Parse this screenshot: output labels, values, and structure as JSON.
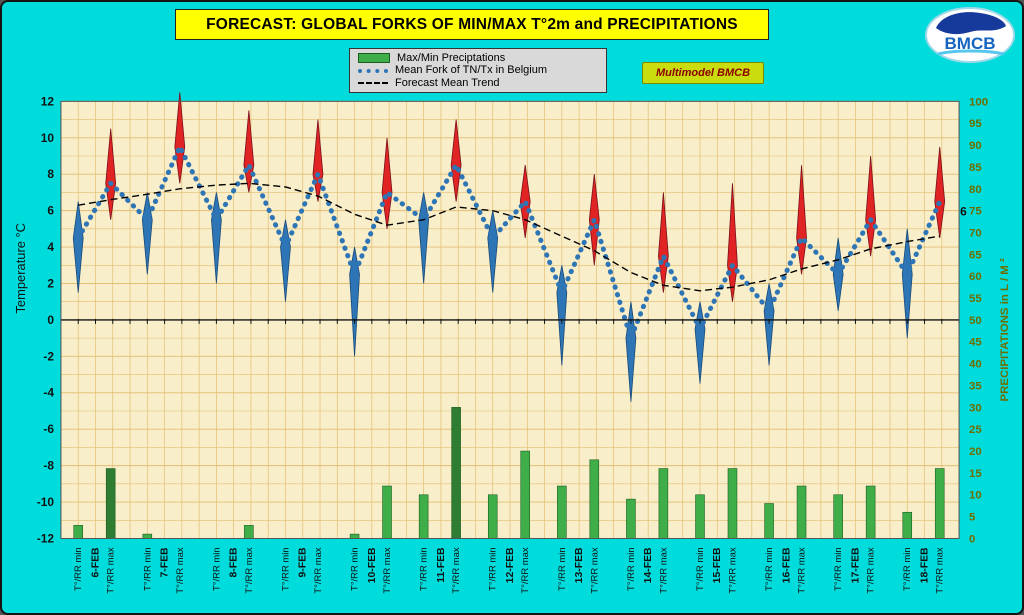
{
  "title": "FORECAST: GLOBAL FORKS OF  MIN/MAX T°2m and PRECIPITATIONS",
  "badge": "Multimodel BMCB",
  "logo": {
    "text": "BMCB"
  },
  "legend": [
    {
      "label": "Max/Min Preciptations"
    },
    {
      "label": "Mean Fork of TN/Tx in Belgium"
    },
    {
      "label": "Forecast Mean Trend"
    }
  ],
  "colors": {
    "background": "#00dcdc",
    "banner_bg": "#ffff00",
    "plot_bg": "#f8eec9",
    "grid": "#e3bd72",
    "bar": "#3fae49",
    "bar_dark": "#2e7d32",
    "fork": "#2e75b6",
    "spike_max": "#e02424",
    "spike_min": "#2e75b6",
    "trend": "#000000",
    "badge_bg": "#c9dc0e",
    "badge_text": "#8b0000",
    "right_axis": "#6e6e00"
  },
  "chart_data": {
    "type": "line",
    "title": "FORECAST: GLOBAL FORKS OF  MIN/MAX T°2m and PRECIPITATIONS",
    "temp_axis": {
      "label": "Temperature  °C",
      "min": -12,
      "max": 12,
      "step": 2
    },
    "precip_axis": {
      "label": "PRECIPITATIONS in L / M ²",
      "min": 0,
      "max": 100,
      "step": 5
    },
    "x_min_label": "T°/RR min",
    "x_max_label": "T°/RR max",
    "end_annotation": "6",
    "series": [
      "Max/Min Preciptations",
      "Mean Fork of TN/Tx in Belgium",
      "Forecast Mean Trend"
    ],
    "legend_position": "top",
    "grid": true,
    "days": [
      {
        "date": "6-FEB",
        "min": {
          "mean": 4.5,
          "spike_hi": 6.5,
          "spike_lo": 1.5,
          "trend": 6.3,
          "precip": 3
        },
        "max": {
          "mean": 7.5,
          "spike_hi": 10.5,
          "spike_lo": 5.5,
          "trend": 6.6,
          "precip": 16,
          "dark": true
        }
      },
      {
        "date": "7-FEB",
        "min": {
          "mean": 5.5,
          "spike_hi": 7.0,
          "spike_lo": 2.5,
          "trend": 6.9,
          "precip": 1
        },
        "max": {
          "mean": 9.5,
          "spike_hi": 12.5,
          "spike_lo": 7.5,
          "trend": 7.2,
          "precip": 0
        }
      },
      {
        "date": "8-FEB",
        "min": {
          "mean": 5.5,
          "spike_hi": 7.0,
          "spike_lo": 2.0,
          "trend": 7.4,
          "precip": 0
        },
        "max": {
          "mean": 8.5,
          "spike_hi": 11.5,
          "spike_lo": 7.0,
          "trend": 7.5,
          "precip": 3
        }
      },
      {
        "date": "9-FEB",
        "min": {
          "mean": 4.0,
          "spike_hi": 5.5,
          "spike_lo": 1.0,
          "trend": 7.3,
          "precip": 0
        },
        "max": {
          "mean": 8.0,
          "spike_hi": 11.0,
          "spike_lo": 6.5,
          "trend": 6.8,
          "precip": 0
        }
      },
      {
        "date": "10-FEB",
        "min": {
          "mean": 2.5,
          "spike_hi": 4.0,
          "spike_lo": -2.0,
          "trend": 5.8,
          "precip": 1
        },
        "max": {
          "mean": 7.0,
          "spike_hi": 10.0,
          "spike_lo": 5.0,
          "trend": 5.2,
          "precip": 12
        }
      },
      {
        "date": "11-FEB",
        "min": {
          "mean": 5.5,
          "spike_hi": 7.0,
          "spike_lo": 2.0,
          "trend": 5.5,
          "precip": 10
        },
        "max": {
          "mean": 8.5,
          "spike_hi": 11.0,
          "spike_lo": 6.5,
          "trend": 6.2,
          "precip": 30,
          "dark": true
        }
      },
      {
        "date": "12-FEB",
        "min": {
          "mean": 4.5,
          "spike_hi": 6.0,
          "spike_lo": 1.5,
          "trend": 6.0,
          "precip": 10
        },
        "max": {
          "mean": 6.5,
          "spike_hi": 8.5,
          "spike_lo": 4.5,
          "trend": 5.5,
          "precip": 20
        }
      },
      {
        "date": "13-FEB",
        "min": {
          "mean": 1.5,
          "spike_hi": 3.0,
          "spike_lo": -2.5,
          "trend": 4.6,
          "precip": 12
        },
        "max": {
          "mean": 5.5,
          "spike_hi": 8.0,
          "spike_lo": 3.0,
          "trend": 3.8,
          "precip": 18
        }
      },
      {
        "date": "14-FEB",
        "min": {
          "mean": -1.0,
          "spike_hi": 1.0,
          "spike_lo": -4.5,
          "trend": 2.6,
          "precip": 9
        },
        "max": {
          "mean": 3.5,
          "spike_hi": 7.0,
          "spike_lo": 1.5,
          "trend": 1.9,
          "precip": 16
        }
      },
      {
        "date": "15-FEB",
        "min": {
          "mean": -0.5,
          "spike_hi": 1.0,
          "spike_lo": -3.5,
          "trend": 1.6,
          "precip": 10
        },
        "max": {
          "mean": 3.0,
          "spike_hi": 7.5,
          "spike_lo": 1.0,
          "trend": 1.8,
          "precip": 16
        }
      },
      {
        "date": "16-FEB",
        "min": {
          "mean": 0.5,
          "spike_hi": 2.0,
          "spike_lo": -2.5,
          "trend": 2.2,
          "precip": 8
        },
        "max": {
          "mean": 4.5,
          "spike_hi": 8.5,
          "spike_lo": 2.5,
          "trend": 2.8,
          "precip": 12
        }
      },
      {
        "date": "17-FEB",
        "min": {
          "mean": 2.5,
          "spike_hi": 4.5,
          "spike_lo": 0.5,
          "trend": 3.3,
          "precip": 10
        },
        "max": {
          "mean": 5.5,
          "spike_hi": 9.0,
          "spike_lo": 3.5,
          "trend": 3.9,
          "precip": 12
        }
      },
      {
        "date": "18-FEB",
        "min": {
          "mean": 2.5,
          "spike_hi": 5.0,
          "spike_lo": -1.0,
          "trend": 4.3,
          "precip": 6
        },
        "max": {
          "mean": 6.5,
          "spike_hi": 9.5,
          "spike_lo": 4.5,
          "trend": 4.6,
          "precip": 16
        }
      }
    ]
  }
}
